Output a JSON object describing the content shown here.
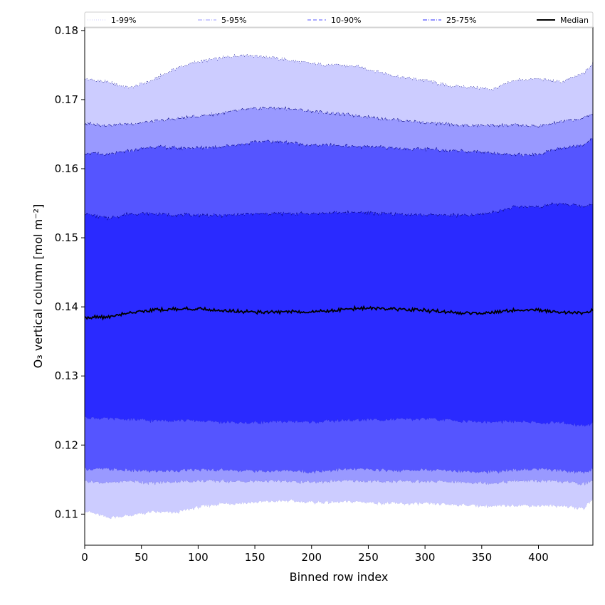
{
  "chart_data": {
    "type": "area",
    "title": "",
    "xlabel": "Binned row index",
    "ylabel": "O₃ vertical column [mol m⁻²]",
    "xlim": [
      0,
      448
    ],
    "ylim": [
      0.1055,
      0.1805
    ],
    "xticks": [
      0,
      50,
      100,
      150,
      200,
      250,
      300,
      350,
      400
    ],
    "xtick_labels": [
      "0",
      "50",
      "100",
      "150",
      "200",
      "250",
      "300",
      "350",
      "400"
    ],
    "yticks": [
      0.11,
      0.12,
      0.13,
      0.14,
      0.15,
      0.16,
      0.17,
      0.18
    ],
    "ytick_labels": [
      "0.11",
      "0.12",
      "0.13",
      "0.14",
      "0.15",
      "0.16",
      "0.17",
      "0.18"
    ],
    "grid": false,
    "legend_position": "top",
    "x": [
      0,
      20,
      40,
      60,
      80,
      100,
      120,
      140,
      160,
      180,
      200,
      220,
      240,
      260,
      280,
      300,
      320,
      340,
      360,
      380,
      400,
      420,
      440,
      448
    ],
    "bands": [
      {
        "name": "1-99%",
        "color": "#ccccff",
        "line_color": "#000080",
        "line_style": "dotted",
        "lower": [
          0.1105,
          0.1095,
          0.1098,
          0.1103,
          0.1102,
          0.111,
          0.1115,
          0.1116,
          0.1118,
          0.1119,
          0.1117,
          0.1117,
          0.1118,
          0.1116,
          0.1115,
          0.1115,
          0.1114,
          0.1113,
          0.1111,
          0.1113,
          0.1112,
          0.1112,
          0.1108,
          0.1122
        ],
        "upper": [
          0.173,
          0.1725,
          0.1717,
          0.1728,
          0.1745,
          0.1755,
          0.176,
          0.1765,
          0.1762,
          0.1757,
          0.1752,
          0.175,
          0.1748,
          0.174,
          0.1732,
          0.1728,
          0.172,
          0.1718,
          0.1715,
          0.1728,
          0.173,
          0.1725,
          0.1738,
          0.1752
        ]
      },
      {
        "name": "5-95%",
        "color": "#9999ff",
        "line_color": "#000080",
        "line_style": "dashdot",
        "lower": [
          0.1148,
          0.1145,
          0.1148,
          0.1145,
          0.1147,
          0.1148,
          0.1148,
          0.1147,
          0.1148,
          0.1147,
          0.1146,
          0.1148,
          0.1148,
          0.1147,
          0.1148,
          0.1147,
          0.1147,
          0.1146,
          0.1145,
          0.1148,
          0.1148,
          0.1147,
          0.1144,
          0.1148
        ],
        "upper": [
          0.1665,
          0.1663,
          0.1665,
          0.1668,
          0.1672,
          0.1676,
          0.168,
          0.1685,
          0.1688,
          0.1687,
          0.1683,
          0.168,
          0.1677,
          0.1673,
          0.167,
          0.1667,
          0.1664,
          0.1662,
          0.1663,
          0.1663,
          0.1661,
          0.1668,
          0.1673,
          0.168
        ]
      },
      {
        "name": "10-90%",
        "color": "#5555ff",
        "line_color": "#000080",
        "line_style": "dashed",
        "lower": [
          0.1165,
          0.1165,
          0.1163,
          0.1162,
          0.1163,
          0.1164,
          0.1164,
          0.1163,
          0.1162,
          0.1163,
          0.1161,
          0.1164,
          0.1165,
          0.1164,
          0.1163,
          0.1164,
          0.1163,
          0.1162,
          0.1161,
          0.1164,
          0.1165,
          0.1163,
          0.116,
          0.1165
        ],
        "upper": [
          0.1623,
          0.162,
          0.1626,
          0.1632,
          0.163,
          0.163,
          0.1632,
          0.1636,
          0.164,
          0.1638,
          0.1634,
          0.1634,
          0.1632,
          0.1631,
          0.1629,
          0.1628,
          0.1627,
          0.1625,
          0.1623,
          0.162,
          0.162,
          0.163,
          0.1634,
          0.1645
        ]
      },
      {
        "name": "25-75%",
        "color": "#2a2aff",
        "line_color": "#000080",
        "line_style": "dashdot",
        "lower": [
          0.124,
          0.1238,
          0.1237,
          0.1235,
          0.1236,
          0.1235,
          0.1233,
          0.1232,
          0.1233,
          0.1234,
          0.1233,
          0.1235,
          0.1236,
          0.1237,
          0.1237,
          0.1238,
          0.1236,
          0.1234,
          0.1233,
          0.1234,
          0.1232,
          0.1232,
          0.1228,
          0.1232
        ],
        "upper": [
          0.1535,
          0.1528,
          0.1535,
          0.1535,
          0.1533,
          0.1533,
          0.1532,
          0.1534,
          0.1535,
          0.1535,
          0.1535,
          0.1536,
          0.1537,
          0.1535,
          0.1534,
          0.1533,
          0.1533,
          0.1532,
          0.1537,
          0.1545,
          0.1545,
          0.155,
          0.1545,
          0.155
        ]
      }
    ],
    "median": {
      "name": "Median",
      "color": "#000000",
      "values": [
        0.1385,
        0.1385,
        0.1392,
        0.1395,
        0.1397,
        0.1397,
        0.1395,
        0.1393,
        0.1392,
        0.1393,
        0.1393,
        0.1395,
        0.1398,
        0.1398,
        0.1396,
        0.1395,
        0.1392,
        0.1391,
        0.1392,
        0.1395,
        0.1395,
        0.1392,
        0.1391,
        0.1395
      ]
    },
    "legend": [
      "1-99%",
      "5-95%",
      "10-90%",
      "25-75%",
      "Median"
    ]
  }
}
